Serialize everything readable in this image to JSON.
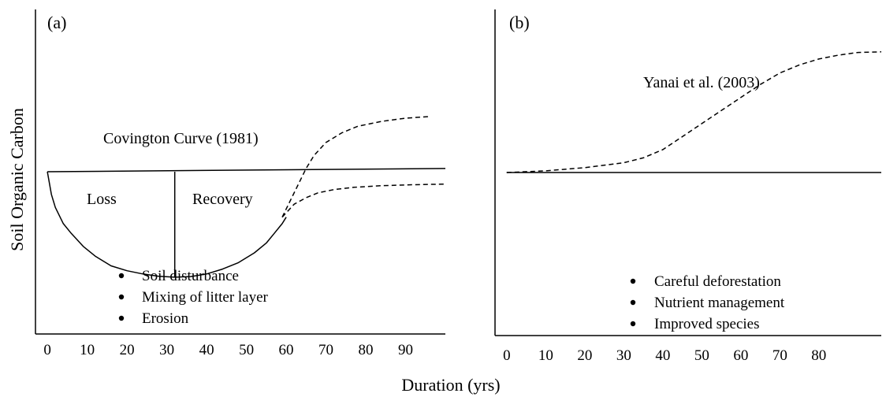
{
  "figure": {
    "ylabel": "Soil Organic Carbon",
    "xlabel": "Duration (yrs)"
  },
  "panel_a": {
    "label": "(a)",
    "curve_title": "Covington Curve (1981)",
    "region_loss": "Loss",
    "region_recovery": "Recovery",
    "bullets": [
      "Soil disturbance",
      "Mixing of litter layer",
      "Erosion"
    ]
  },
  "panel_b": {
    "label": "(b)",
    "curve_title": "Yanai et al. (2003)",
    "bullets": [
      "Careful deforestation",
      "Nutrient management",
      "Improved species"
    ]
  },
  "chart_data": [
    {
      "type": "line",
      "panel": "(a)",
      "title": "Covington Curve (1981)",
      "xlabel": "Duration (yrs)",
      "ylabel": "Soil Organic Carbon",
      "xticks": [
        0,
        10,
        20,
        30,
        40,
        50,
        60,
        70,
        80,
        90
      ],
      "xlim": [
        -3,
        100
      ],
      "ylim": [
        0,
        100
      ],
      "grid": false,
      "series": [
        {
          "style": "solid",
          "x": [
            0,
            1,
            2,
            4,
            6,
            9,
            12,
            16,
            20,
            24,
            28,
            32,
            36,
            40,
            44,
            48,
            52,
            55,
            57,
            59,
            60
          ],
          "y": [
            50,
            43,
            39,
            34,
            31,
            27,
            24,
            21,
            19.5,
            18.5,
            17.8,
            17.5,
            17.7,
            18.5,
            20,
            22,
            25,
            28,
            31,
            34,
            36
          ]
        },
        {
          "style": "solid",
          "x": [
            0,
            100
          ],
          "y": [
            50,
            51
          ]
        },
        {
          "style": "solid",
          "x": [
            32,
            32
          ],
          "y": [
            17.5,
            50
          ]
        },
        {
          "style": "dashed",
          "x": [
            59,
            61,
            63,
            65,
            67,
            70,
            74,
            78,
            84,
            90,
            96
          ],
          "y": [
            36,
            41,
            46,
            51,
            55,
            59,
            62,
            64,
            65.5,
            66.5,
            67
          ]
        },
        {
          "style": "dashed",
          "x": [
            59,
            62,
            65,
            68,
            72,
            77,
            84,
            92,
            100
          ],
          "y": [
            36,
            40,
            42,
            43.5,
            44.5,
            45.2,
            45.7,
            46,
            46.2
          ]
        }
      ],
      "annotations": [
        "Loss",
        "Recovery",
        "Soil disturbance",
        "Mixing of litter layer",
        "Erosion"
      ]
    },
    {
      "type": "line",
      "panel": "(b)",
      "title": "Yanai et al. (2003)",
      "xlabel": "Duration (yrs)",
      "ylabel": "Soil Organic Carbon",
      "xticks": [
        0,
        10,
        20,
        30,
        40,
        50,
        60,
        70,
        80
      ],
      "xlim": [
        -3,
        96
      ],
      "ylim": [
        0,
        100
      ],
      "grid": false,
      "series": [
        {
          "style": "solid",
          "x": [
            0,
            96
          ],
          "y": [
            50,
            50
          ]
        },
        {
          "style": "dashed",
          "x": [
            0,
            10,
            20,
            30,
            35,
            40,
            45,
            50,
            55,
            60,
            65,
            70,
            75,
            80,
            85,
            90,
            96
          ],
          "y": [
            50,
            50.5,
            51.5,
            53,
            54.5,
            57,
            61,
            65,
            69,
            73,
            77,
            80.5,
            83,
            84.8,
            86,
            86.8,
            87
          ]
        }
      ],
      "annotations": [
        "Careful deforestation",
        "Nutrient management",
        "Improved species"
      ]
    }
  ]
}
